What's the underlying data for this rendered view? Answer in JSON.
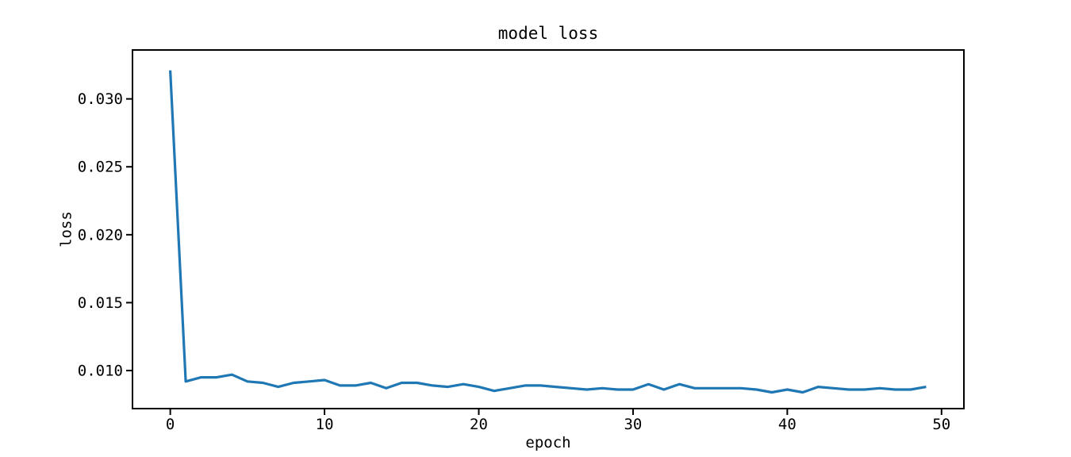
{
  "figure": {
    "background": "#ffffff"
  },
  "chart_data": {
    "type": "line",
    "title": "model loss",
    "xlabel": "epoch",
    "ylabel": "loss",
    "grid": false,
    "legend": null,
    "line_color": "#1f77b4",
    "axis_color": "#000000",
    "xlim": [
      -2.45,
      51.45
    ],
    "ylim": [
      0.0072,
      0.0336
    ],
    "xticks": {
      "values": [
        0,
        10,
        20,
        30,
        40,
        50
      ],
      "labels": [
        "0",
        "10",
        "20",
        "30",
        "40",
        "50"
      ]
    },
    "yticks": {
      "values": [
        0.01,
        0.015,
        0.02,
        0.025,
        0.03
      ],
      "labels": [
        "0.010",
        "0.015",
        "0.020",
        "0.025",
        "0.030"
      ]
    },
    "series": [
      {
        "x": [
          0,
          1,
          2,
          3,
          4,
          5,
          6,
          7,
          8,
          9,
          10,
          11,
          12,
          13,
          14,
          15,
          16,
          17,
          18,
          19,
          20,
          21,
          22,
          23,
          24,
          25,
          26,
          27,
          28,
          29,
          30,
          31,
          32,
          33,
          34,
          35,
          36,
          37,
          38,
          39,
          40,
          41,
          42,
          43,
          44,
          45,
          46,
          47,
          48,
          49
        ],
        "values": [
          0.0321,
          0.0092,
          0.0095,
          0.0095,
          0.0097,
          0.0092,
          0.0091,
          0.0088,
          0.0091,
          0.0092,
          0.0093,
          0.0089,
          0.0089,
          0.0091,
          0.0087,
          0.0091,
          0.0091,
          0.0089,
          0.0088,
          0.009,
          0.0088,
          0.0085,
          0.0087,
          0.0089,
          0.0089,
          0.0088,
          0.0087,
          0.0086,
          0.0087,
          0.0086,
          0.0086,
          0.009,
          0.0086,
          0.009,
          0.0087,
          0.0087,
          0.0087,
          0.0087,
          0.0086,
          0.0084,
          0.0086,
          0.0084,
          0.0088,
          0.0087,
          0.0086,
          0.0086,
          0.0087,
          0.0086,
          0.0086,
          0.0088
        ]
      }
    ]
  }
}
